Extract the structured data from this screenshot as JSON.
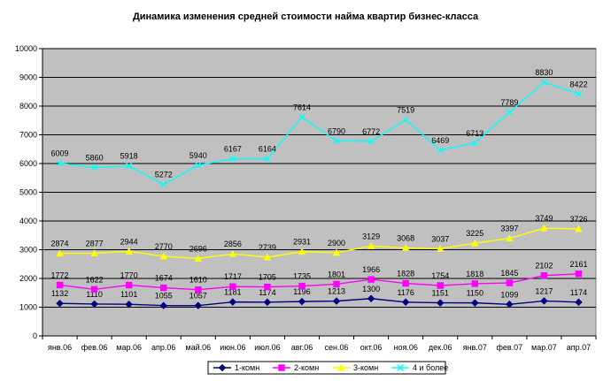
{
  "chart_data": {
    "type": "line",
    "title": "Динамика изменения средней стоимости найма квартир бизнес-класса",
    "xlabel": "",
    "ylabel": "",
    "ylim": [
      0,
      10000
    ],
    "yticks": [
      0,
      1000,
      2000,
      3000,
      4000,
      5000,
      6000,
      7000,
      8000,
      9000,
      10000
    ],
    "grid": true,
    "plot_background": "#c0c0c0",
    "legend_position": "bottom",
    "categories": [
      "янв.06",
      "фев.06",
      "мар.06",
      "апр.06",
      "май.06",
      "июн.06",
      "июл.06",
      "авг.06",
      "сен.06",
      "окт.06",
      "ноя.06",
      "дек.06",
      "янв.07",
      "фев.07",
      "мар.07",
      "апр.07"
    ],
    "series": [
      {
        "name": "1-комн",
        "color": "#000080",
        "marker": "diamond",
        "values": [
          1132,
          1110,
          1101,
          1055,
          1057,
          1181,
          1174,
          1196,
          1213,
          1300,
          1176,
          1151,
          1150,
          1099,
          1217,
          1174
        ]
      },
      {
        "name": "2-комн",
        "color": "#ff00ff",
        "marker": "square",
        "values": [
          1772,
          1622,
          1770,
          1674,
          1610,
          1717,
          1705,
          1735,
          1801,
          1966,
          1828,
          1754,
          1818,
          1845,
          2102,
          2161
        ]
      },
      {
        "name": "3-комн",
        "color": "#ffff00",
        "marker": "triangle",
        "values": [
          2874,
          2877,
          2944,
          2770,
          2696,
          2856,
          2739,
          2931,
          2900,
          3129,
          3068,
          3037,
          3225,
          3397,
          3749,
          3726
        ]
      },
      {
        "name": "4 и более",
        "color": "#00ffff",
        "marker": "x",
        "values": [
          6009,
          5860,
          5918,
          5272,
          5940,
          6167,
          6164,
          7614,
          6790,
          6772,
          7519,
          6469,
          6713,
          7789,
          8830,
          8422
        ]
      }
    ]
  }
}
